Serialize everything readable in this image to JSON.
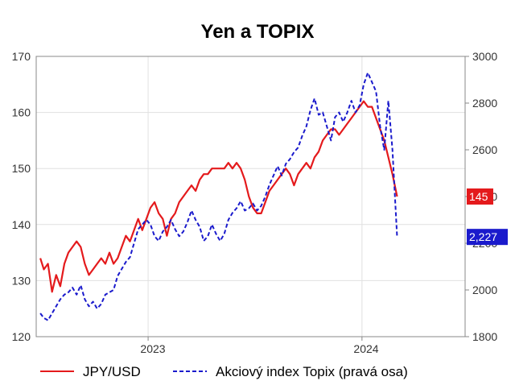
{
  "chart_data": {
    "type": "line",
    "title": "Yen a TOPIX",
    "x_ticks": [
      "2023",
      "2024"
    ],
    "left_axis": {
      "ticks": [
        "120",
        "130",
        "140",
        "150",
        "160",
        "170"
      ],
      "ylim": [
        120,
        170
      ]
    },
    "right_axis": {
      "ticks": [
        "1800",
        "2000",
        "2200",
        "2400",
        "2600",
        "2800",
        "3000"
      ],
      "ylim": [
        1800,
        3000
      ]
    },
    "grid": true,
    "legend_position": "bottom",
    "series": [
      {
        "name": "JPY/USD",
        "axis": "left",
        "color": "#e41a1c",
        "style": "solid",
        "last_label": "145",
        "points": [
          [
            "2022-07-01",
            134
          ],
          [
            "2022-07-07",
            132
          ],
          [
            "2022-07-14",
            133
          ],
          [
            "2022-07-21",
            128
          ],
          [
            "2022-07-28",
            131
          ],
          [
            "2022-08-04",
            129
          ],
          [
            "2022-08-11",
            133
          ],
          [
            "2022-08-18",
            135
          ],
          [
            "2022-08-25",
            136
          ],
          [
            "2022-09-01",
            137
          ],
          [
            "2022-09-08",
            136
          ],
          [
            "2022-09-15",
            133
          ],
          [
            "2022-09-22",
            131
          ],
          [
            "2022-09-29",
            132
          ],
          [
            "2022-10-06",
            133
          ],
          [
            "2022-10-13",
            134
          ],
          [
            "2022-10-20",
            133
          ],
          [
            "2022-10-27",
            135
          ],
          [
            "2022-11-03",
            133
          ],
          [
            "2022-11-10",
            134
          ],
          [
            "2022-11-17",
            136
          ],
          [
            "2022-11-24",
            138
          ],
          [
            "2022-12-01",
            137
          ],
          [
            "2022-12-08",
            139
          ],
          [
            "2022-12-15",
            141
          ],
          [
            "2022-12-22",
            139
          ],
          [
            "2022-12-29",
            141
          ],
          [
            "2023-01-05",
            143
          ],
          [
            "2023-01-12",
            144
          ],
          [
            "2023-01-19",
            142
          ],
          [
            "2023-01-26",
            141
          ],
          [
            "2023-02-02",
            138
          ],
          [
            "2023-02-09",
            141
          ],
          [
            "2023-02-16",
            142
          ],
          [
            "2023-02-23",
            144
          ],
          [
            "2023-03-02",
            145
          ],
          [
            "2023-03-09",
            146
          ],
          [
            "2023-03-16",
            147
          ],
          [
            "2023-03-23",
            146
          ],
          [
            "2023-03-30",
            148
          ],
          [
            "2023-04-06",
            149
          ],
          [
            "2023-04-13",
            149
          ],
          [
            "2023-04-20",
            150
          ],
          [
            "2023-04-27",
            150
          ],
          [
            "2023-05-04",
            150
          ],
          [
            "2023-05-11",
            150
          ],
          [
            "2023-05-18",
            151
          ],
          [
            "2023-05-25",
            150
          ],
          [
            "2023-06-01",
            151
          ],
          [
            "2023-06-08",
            150
          ],
          [
            "2023-06-15",
            148
          ],
          [
            "2023-06-22",
            145
          ],
          [
            "2023-06-29",
            143
          ],
          [
            "2023-07-06",
            142
          ],
          [
            "2023-07-13",
            142
          ],
          [
            "2023-07-20",
            144
          ],
          [
            "2023-07-27",
            146
          ],
          [
            "2023-08-03",
            147
          ],
          [
            "2023-08-10",
            148
          ],
          [
            "2023-08-17",
            149
          ],
          [
            "2023-08-24",
            150
          ],
          [
            "2023-08-31",
            149
          ],
          [
            "2023-09-07",
            147
          ],
          [
            "2023-09-14",
            149
          ],
          [
            "2023-09-21",
            150
          ],
          [
            "2023-09-28",
            151
          ],
          [
            "2023-10-05",
            150
          ],
          [
            "2023-10-12",
            152
          ],
          [
            "2023-10-19",
            153
          ],
          [
            "2023-10-26",
            155
          ],
          [
            "2023-11-02",
            156
          ],
          [
            "2023-11-09",
            157
          ],
          [
            "2023-11-16",
            157
          ],
          [
            "2023-11-23",
            156
          ],
          [
            "2023-11-30",
            157
          ],
          [
            "2023-12-07",
            158
          ],
          [
            "2023-12-14",
            159
          ],
          [
            "2023-12-21",
            160
          ],
          [
            "2023-12-28",
            161
          ],
          [
            "2024-01-04",
            162
          ],
          [
            "2024-01-11",
            161
          ],
          [
            "2024-01-18",
            161
          ],
          [
            "2024-01-25",
            159
          ],
          [
            "2024-02-01",
            157
          ],
          [
            "2024-02-08",
            155
          ],
          [
            "2024-02-15",
            152
          ],
          [
            "2024-02-22",
            149
          ],
          [
            "2024-03-01",
            145
          ]
        ]
      },
      {
        "name": "Akciový index Topix (pravá osa)",
        "axis": "right",
        "color": "#1a1acc",
        "style": "dashed",
        "last_label": "2,227",
        "points": [
          [
            "2022-07-01",
            1900
          ],
          [
            "2022-07-07",
            1880
          ],
          [
            "2022-07-14",
            1870
          ],
          [
            "2022-07-21",
            1900
          ],
          [
            "2022-07-28",
            1930
          ],
          [
            "2022-08-04",
            1960
          ],
          [
            "2022-08-11",
            1980
          ],
          [
            "2022-08-18",
            1990
          ],
          [
            "2022-08-25",
            2010
          ],
          [
            "2022-09-01",
            1980
          ],
          [
            "2022-09-08",
            2020
          ],
          [
            "2022-09-15",
            1960
          ],
          [
            "2022-09-22",
            1930
          ],
          [
            "2022-09-29",
            1950
          ],
          [
            "2022-10-06",
            1920
          ],
          [
            "2022-10-13",
            1940
          ],
          [
            "2022-10-20",
            1980
          ],
          [
            "2022-10-27",
            1990
          ],
          [
            "2022-11-03",
            2000
          ],
          [
            "2022-11-10",
            2060
          ],
          [
            "2022-11-17",
            2090
          ],
          [
            "2022-11-24",
            2120
          ],
          [
            "2022-12-01",
            2140
          ],
          [
            "2022-12-08",
            2200
          ],
          [
            "2022-12-15",
            2260
          ],
          [
            "2022-12-22",
            2280
          ],
          [
            "2022-12-29",
            2300
          ],
          [
            "2023-01-05",
            2280
          ],
          [
            "2023-01-12",
            2230
          ],
          [
            "2023-01-19",
            2210
          ],
          [
            "2023-01-26",
            2250
          ],
          [
            "2023-02-02",
            2270
          ],
          [
            "2023-02-09",
            2300
          ],
          [
            "2023-02-16",
            2260
          ],
          [
            "2023-02-23",
            2230
          ],
          [
            "2023-03-02",
            2250
          ],
          [
            "2023-03-09",
            2290
          ],
          [
            "2023-03-16",
            2340
          ],
          [
            "2023-03-23",
            2300
          ],
          [
            "2023-03-30",
            2270
          ],
          [
            "2023-04-06",
            2210
          ],
          [
            "2023-04-13",
            2230
          ],
          [
            "2023-04-20",
            2280
          ],
          [
            "2023-04-27",
            2240
          ],
          [
            "2023-05-04",
            2210
          ],
          [
            "2023-05-11",
            2240
          ],
          [
            "2023-05-18",
            2300
          ],
          [
            "2023-05-25",
            2330
          ],
          [
            "2023-06-01",
            2350
          ],
          [
            "2023-06-08",
            2380
          ],
          [
            "2023-06-15",
            2340
          ],
          [
            "2023-06-22",
            2350
          ],
          [
            "2023-06-29",
            2370
          ],
          [
            "2023-07-06",
            2340
          ],
          [
            "2023-07-13",
            2360
          ],
          [
            "2023-07-20",
            2400
          ],
          [
            "2023-07-27",
            2450
          ],
          [
            "2023-08-03",
            2490
          ],
          [
            "2023-08-10",
            2530
          ],
          [
            "2023-08-17",
            2490
          ],
          [
            "2023-08-24",
            2540
          ],
          [
            "2023-08-31",
            2560
          ],
          [
            "2023-09-07",
            2590
          ],
          [
            "2023-09-14",
            2610
          ],
          [
            "2023-09-21",
            2660
          ],
          [
            "2023-09-28",
            2700
          ],
          [
            "2023-10-05",
            2770
          ],
          [
            "2023-10-12",
            2820
          ],
          [
            "2023-10-19",
            2750
          ],
          [
            "2023-10-26",
            2760
          ],
          [
            "2023-11-02",
            2700
          ],
          [
            "2023-11-09",
            2640
          ],
          [
            "2023-11-16",
            2740
          ],
          [
            "2023-11-23",
            2760
          ],
          [
            "2023-11-30",
            2720
          ],
          [
            "2023-12-07",
            2760
          ],
          [
            "2023-12-14",
            2810
          ],
          [
            "2023-12-21",
            2760
          ],
          [
            "2023-12-28",
            2790
          ],
          [
            "2024-01-04",
            2880
          ],
          [
            "2024-01-11",
            2930
          ],
          [
            "2024-01-18",
            2890
          ],
          [
            "2024-01-25",
            2850
          ],
          [
            "2024-02-01",
            2700
          ],
          [
            "2024-02-08",
            2600
          ],
          [
            "2024-02-15",
            2810
          ],
          [
            "2024-02-22",
            2600
          ],
          [
            "2024-03-01",
            2227
          ]
        ]
      }
    ]
  }
}
